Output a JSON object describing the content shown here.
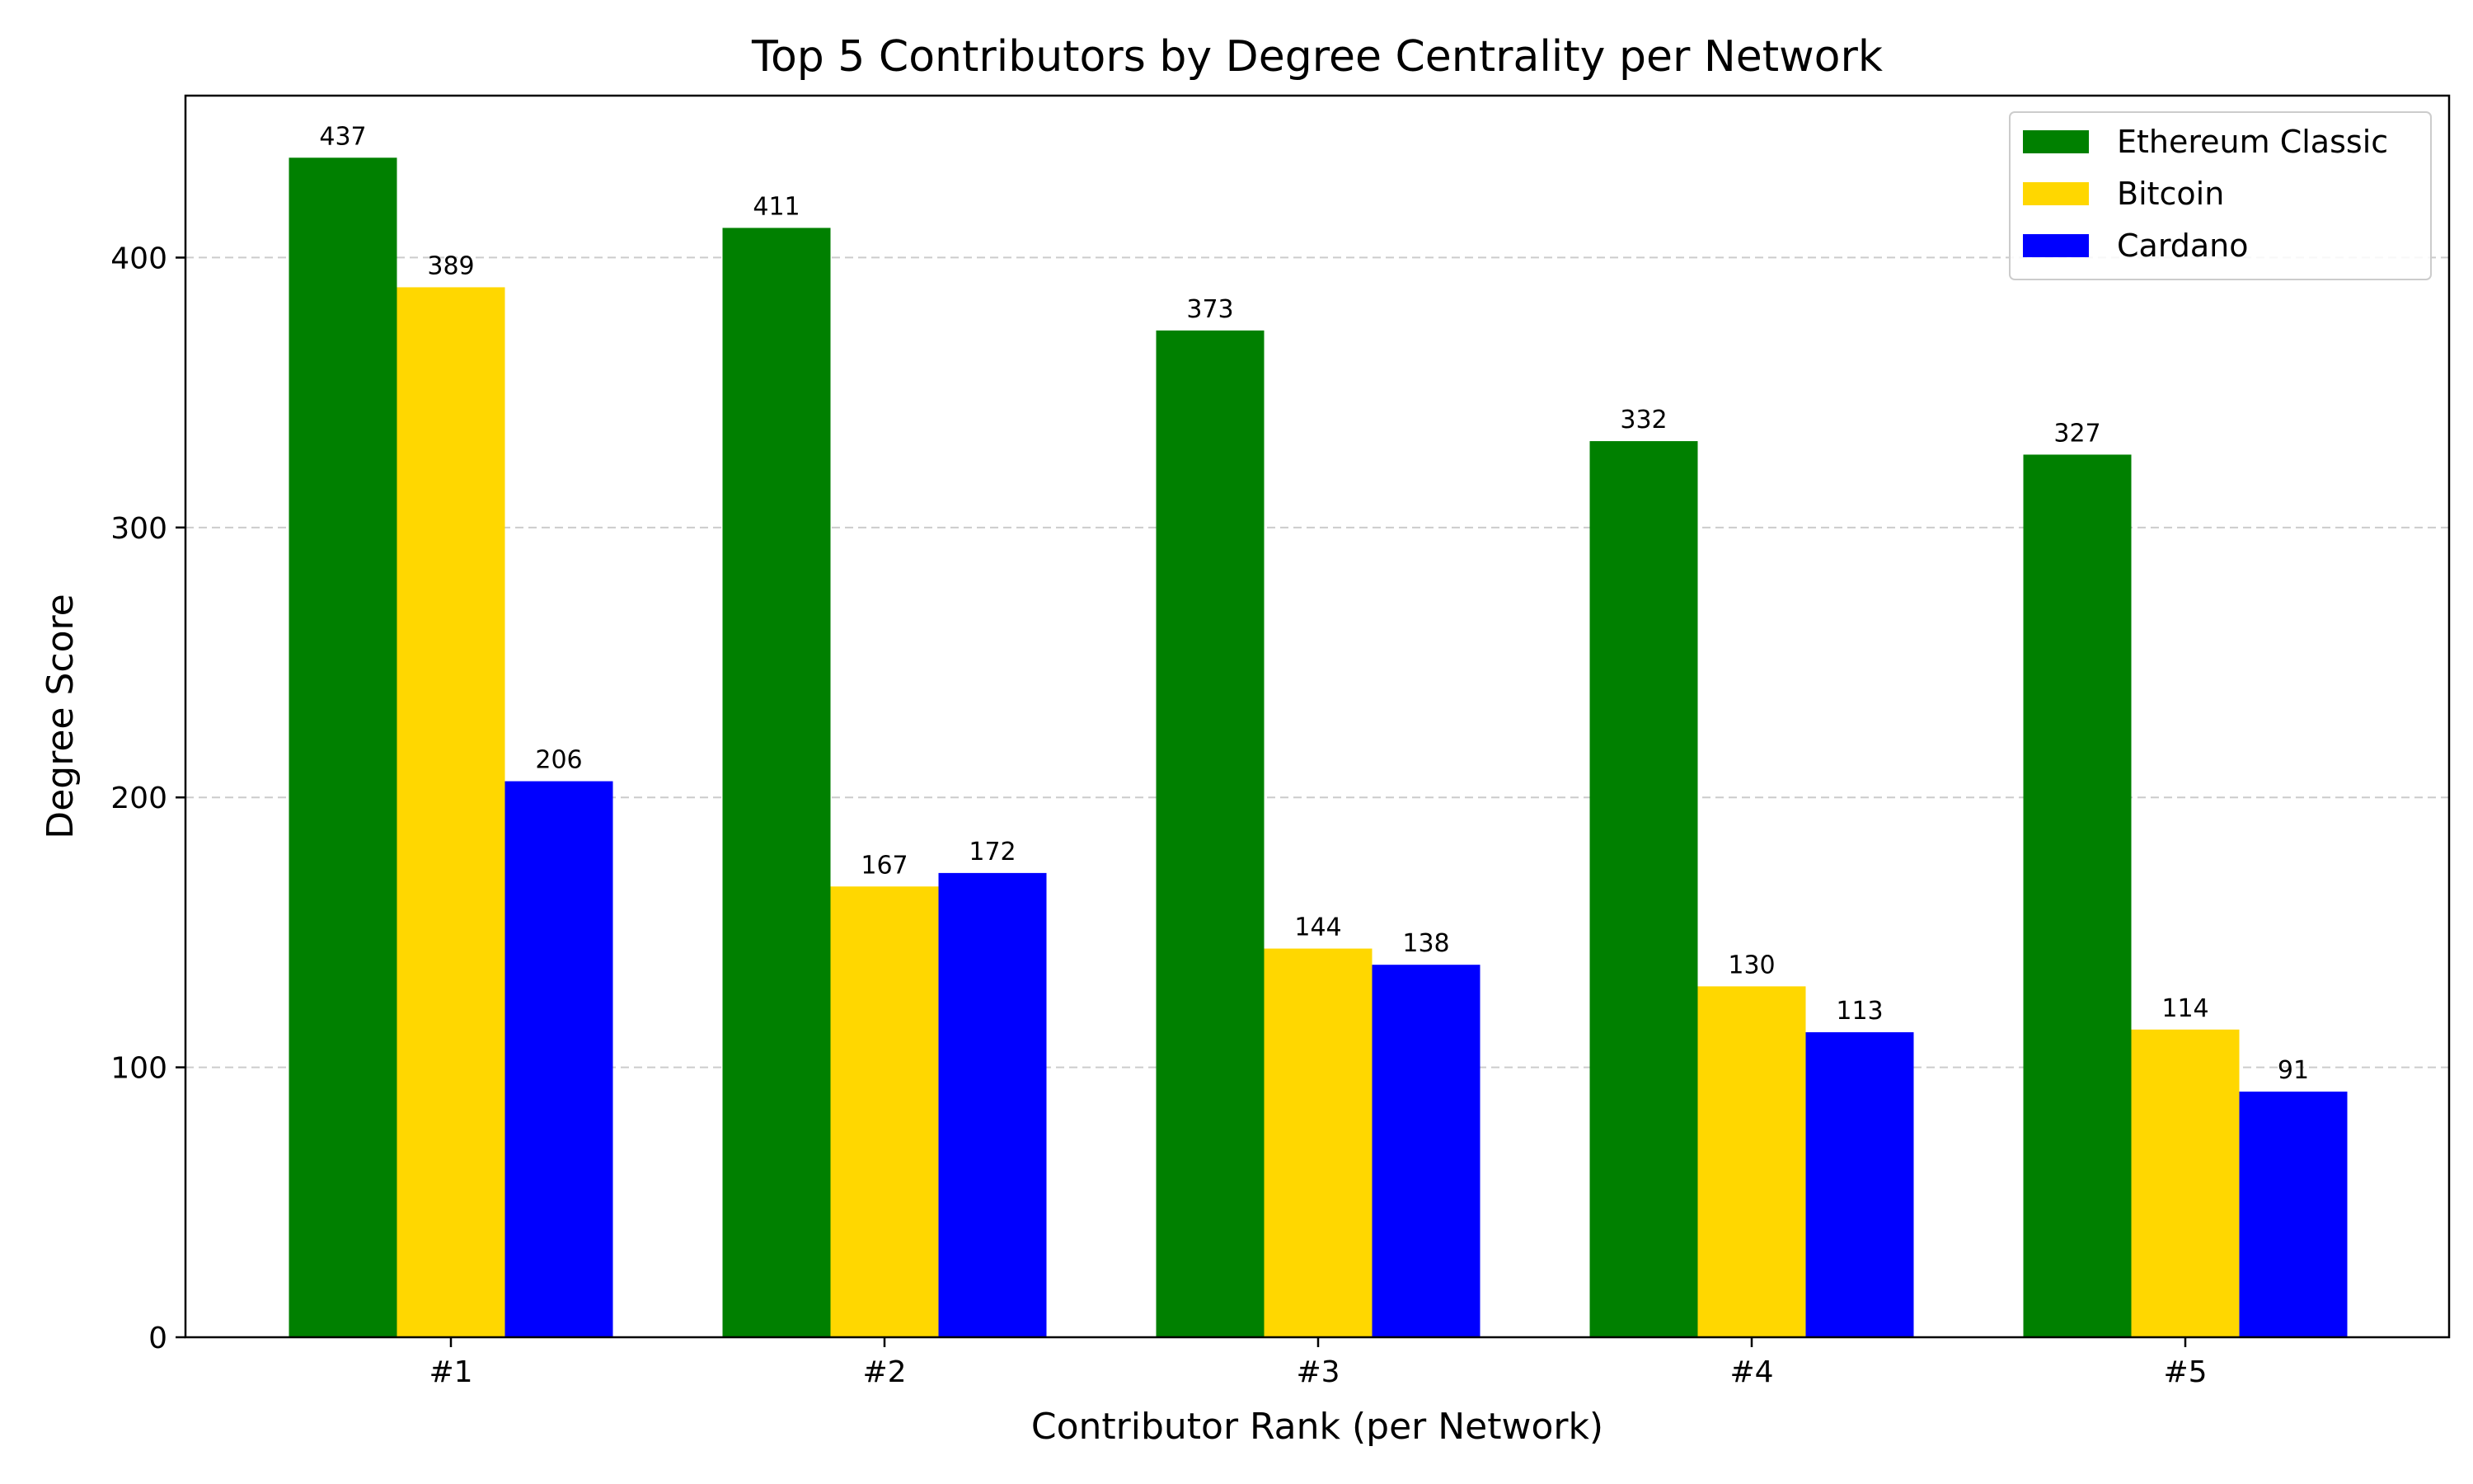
{
  "chart_data": {
    "type": "bar",
    "title": "Top 5 Contributors by Degree Centrality per Network",
    "xlabel": "Contributor Rank (per Network)",
    "ylabel": "Degree Score",
    "categories": [
      "#1",
      "#2",
      "#3",
      "#4",
      "#5"
    ],
    "series": [
      {
        "name": "Ethereum Classic",
        "color": "#008000",
        "values": [
          437,
          411,
          373,
          332,
          327
        ]
      },
      {
        "name": "Bitcoin",
        "color": "#FFD700",
        "values": [
          389,
          167,
          144,
          130,
          114
        ]
      },
      {
        "name": "Cardano",
        "color": "#0000FF",
        "values": [
          206,
          172,
          138,
          113,
          91
        ]
      }
    ],
    "ylim": [
      0,
      460
    ],
    "yticks": [
      0,
      100,
      200,
      300,
      400
    ],
    "grid": "y-dashed",
    "legend": "top-right"
  }
}
